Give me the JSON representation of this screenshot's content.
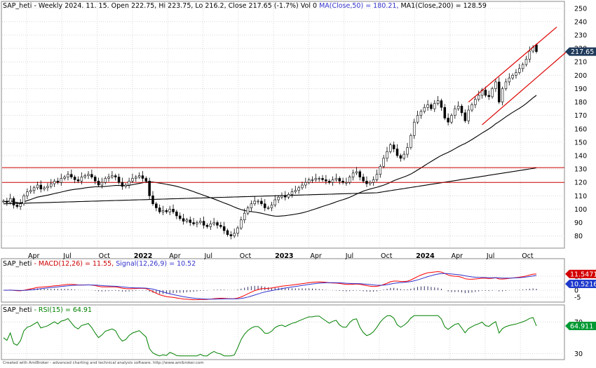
{
  "header": {
    "symbol_label": "SAP_heti",
    "info_text": " - Weekly 2024. 11. 15. Open 222.75, Hi 223.75, Lo 216.2, Close 217.65 (-1.7%) Vol 0 ",
    "ma50_text": "MA(Close,50) = 180.21, ",
    "ma200_text": "MA1(Close,200) = 128.59"
  },
  "macd_header": {
    "symbol_label": "SAP_heti",
    "macd_text": " - MACD(12,26) = 11.55, ",
    "signal_text": "Signal(12,26,9) = 10.52"
  },
  "rsi_header": {
    "symbol_label": "SAP_heti",
    "rsi_text": " - RSI(15) = 64.91"
  },
  "footer_credit": "Created with AmiBroker - advanced charting and technical analysis software. http://www.amibroker.com",
  "colors": {
    "price_candle": "#000000",
    "ma_line": "#000000",
    "horizontal_lines": "#cc0000",
    "channel": "#dd0000",
    "macd": "#ff0000",
    "signal": "#3333cc",
    "histogram": "#333366",
    "rsi": "#008000",
    "last_price_badge": "#1f3a5a",
    "macd_badge": "#d40000",
    "signal_badge": "#1f3acc",
    "rsi_badge": "#009933",
    "grid": "#d8d8d8"
  },
  "chart_data": [
    {
      "type": "candlestick",
      "title": "SAP_heti - Weekly",
      "x_tick_labels": [
        "Apr",
        "Jul",
        "Oct",
        "2022",
        "Apr",
        "Jul",
        "Oct",
        "2023",
        "Apr",
        "Jul",
        "Oct",
        "2024",
        "Apr",
        "Jul",
        "Oct"
      ],
      "bold_x_ticks": [
        "2022",
        "2023",
        "2024"
      ],
      "y_tick_labels": [
        250,
        240,
        230,
        220,
        210,
        200,
        190,
        180,
        170,
        160,
        150,
        140,
        130,
        120,
        110,
        100,
        90,
        80
      ],
      "ylim": [
        73,
        252
      ],
      "last_close": 217.65,
      "last_close_label": "217.65",
      "last_bar": {
        "open": 222.75,
        "high": 223.75,
        "low": 216.2,
        "close": 217.65
      },
      "close_series_weekly": [
        106,
        105,
        108,
        103,
        102,
        104,
        110,
        113,
        114,
        116,
        118,
        115,
        116,
        117,
        119,
        121,
        120,
        123,
        124,
        126,
        124,
        122,
        121,
        124,
        125,
        126,
        124,
        121,
        118,
        120,
        123,
        124,
        125,
        124,
        120,
        117,
        118,
        121,
        123,
        124,
        125,
        123,
        121,
        110,
        104,
        101,
        98,
        99,
        98,
        100,
        98,
        95,
        93,
        91,
        92,
        90,
        89,
        90,
        91,
        88,
        87,
        89,
        90,
        88,
        87,
        84,
        81,
        80,
        82,
        86,
        92,
        97,
        101,
        104,
        106,
        106,
        104,
        101,
        101,
        103,
        107,
        109,
        110,
        109,
        111,
        113,
        114,
        116,
        118,
        120,
        122,
        122,
        123,
        123,
        122,
        121,
        120,
        122,
        123,
        121,
        120,
        120,
        124,
        127,
        128,
        124,
        121,
        119,
        120,
        122,
        126,
        132,
        138,
        143,
        148,
        145,
        140,
        138,
        141,
        146,
        155,
        165,
        170,
        173,
        176,
        178,
        175,
        179,
        181,
        176,
        168,
        165,
        170,
        175,
        177,
        172,
        166,
        174,
        178,
        182,
        185,
        189,
        185,
        184,
        190,
        195,
        180,
        190,
        195,
        198,
        200,
        202,
        205,
        208,
        212,
        218,
        221,
        217.65
      ],
      "hlines": [
        131,
        120
      ],
      "channel_upper": [
        {
          "week": 137,
          "value": 180
        },
        {
          "week": 163,
          "value": 236
        }
      ],
      "channel_lower": [
        {
          "week": 141,
          "value": 163
        },
        {
          "week": 167,
          "value": 220
        }
      ],
      "series": [
        {
          "name": "MA(Close,50)",
          "last": 180.21
        },
        {
          "name": "MA1(Close,200)",
          "last": 128.59
        }
      ]
    },
    {
      "type": "line",
      "title": "MACD(12,26)",
      "y_tick_labels": [
        10,
        5,
        0,
        -5
      ],
      "ylim": [
        -8,
        19
      ],
      "series": [
        {
          "name": "MACD(12,26)",
          "last": 11.55
        },
        {
          "name": "Signal(12,26,9)",
          "last": 10.52
        }
      ],
      "last_labels": {
        "macd": "11.5471",
        "signal": "10.5216"
      }
    },
    {
      "type": "line",
      "title": "RSI(15)",
      "y_tick_labels": [
        70,
        30
      ],
      "ylim": [
        25,
        80
      ],
      "series": [
        {
          "name": "RSI(15)",
          "last": 64.91
        }
      ],
      "last_label": "64.911"
    }
  ]
}
